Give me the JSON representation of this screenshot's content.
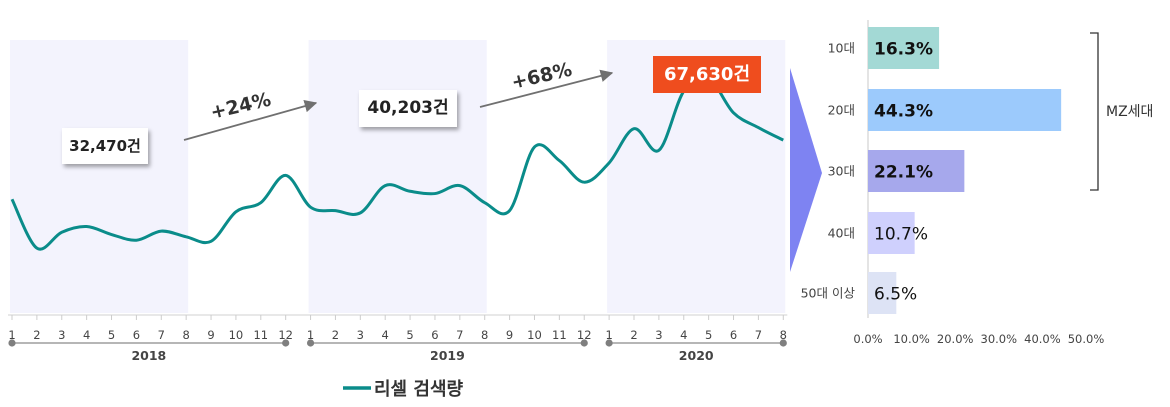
{
  "chart_data": [
    {
      "type": "line",
      "series": [
        {
          "name": "리셀 검색량",
          "color": "#0a8c8a",
          "x": [
            "2018-01",
            "2018-02",
            "2018-03",
            "2018-04",
            "2018-05",
            "2018-06",
            "2018-07",
            "2018-08",
            "2018-09",
            "2018-10",
            "2018-11",
            "2018-12",
            "2019-01",
            "2019-02",
            "2019-03",
            "2019-04",
            "2019-05",
            "2019-06",
            "2019-07",
            "2019-08",
            "2019-09",
            "2019-10",
            "2019-11",
            "2019-12",
            "2020-01",
            "2020-02",
            "2020-03",
            "2020-04",
            "2020-05",
            "2020-06",
            "2020-07",
            "2020-08"
          ],
          "values": [
            100,
            57,
            71,
            76,
            69,
            64,
            72,
            67,
            63,
            89,
            97,
            121,
            93,
            90,
            88,
            112,
            107,
            105,
            112,
            97,
            90,
            146,
            134,
            115,
            132,
            162,
            143,
            195,
            206,
            176,
            163,
            152
          ]
        }
      ],
      "year_groups": [
        {
          "label": "2018",
          "months": [
            "1",
            "2",
            "3",
            "4",
            "5",
            "6",
            "7",
            "8",
            "9",
            "10",
            "11",
            "12"
          ]
        },
        {
          "label": "2019",
          "months": [
            "1",
            "2",
            "3",
            "4",
            "5",
            "6",
            "7",
            "8",
            "9",
            "10",
            "11",
            "12"
          ]
        },
        {
          "label": "2020",
          "months": [
            "1",
            "2",
            "3",
            "4",
            "5",
            "6",
            "7",
            "8"
          ]
        }
      ],
      "ylim": [
        0,
        240
      ],
      "highlighted_ranges": [
        [
          "2018-01",
          "2018-08"
        ],
        [
          "2019-01",
          "2019-08"
        ],
        [
          "2020-01",
          "2020-08"
        ]
      ],
      "highlight_color": "#f3f3fd",
      "callouts": [
        {
          "text": "32,470건",
          "period": "2018",
          "highlight": false
        },
        {
          "text": "40,203건",
          "period": "2019",
          "highlight": false
        },
        {
          "text": "67,630건",
          "period": "2020",
          "highlight": true
        }
      ],
      "growth": [
        {
          "text": "+24%",
          "from": "2018",
          "to": "2019"
        },
        {
          "text": "+68%",
          "from": "2019",
          "to": "2020"
        }
      ]
    },
    {
      "type": "bar",
      "orientation": "horizontal",
      "categories": [
        "10대",
        "20대",
        "30대",
        "40대",
        "50대 이상"
      ],
      "values": [
        16.3,
        44.3,
        22.1,
        10.7,
        6.5
      ],
      "data_labels": [
        "16.3%",
        "44.3%",
        "22.1%",
        "10.7%",
        "6.5%"
      ],
      "label_bold": [
        true,
        true,
        true,
        false,
        false
      ],
      "colors": [
        "#a3d9d5",
        "#9ccafc",
        "#a6a8ec",
        "#cfd0fd",
        "#dde3f5"
      ],
      "xlim": [
        0,
        50
      ],
      "xticks": [
        "0.0%",
        "10.0%",
        "20.0%",
        "30.0%",
        "40.0%",
        "50.0%"
      ],
      "bracket": {
        "label": "MZ세대",
        "covers": [
          "10대",
          "20대",
          "30대"
        ]
      }
    }
  ]
}
